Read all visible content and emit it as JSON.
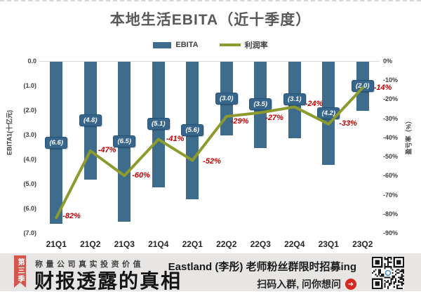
{
  "title": "本地生活EBITA（近十季度）",
  "chart_data": {
    "type": "bar+line",
    "categories": [
      "21Q1",
      "21Q2",
      "21Q3",
      "21Q4",
      "22Q1",
      "22Q2",
      "22Q3",
      "22Q4",
      "23Q1",
      "23Q2"
    ],
    "series": [
      {
        "name": "EBITA",
        "type": "bar",
        "axis": "left",
        "values": [
          -6.6,
          -4.8,
          -6.5,
          -5.1,
          -5.6,
          -3.0,
          -3.5,
          -3.1,
          -4.2,
          -2.0
        ],
        "labels": [
          "(6.6)",
          "(4.8)",
          "(6.5)",
          "(5.1)",
          "(5.6)",
          "(3.0)",
          "(3.5)",
          "(3.1)",
          "(4.2)",
          "(2.0)"
        ]
      },
      {
        "name": "利润率",
        "type": "line",
        "axis": "right",
        "values": [
          -82,
          -47,
          -60,
          -41,
          -52,
          -29,
          -27,
          -24,
          -33,
          -14
        ],
        "labels": [
          "-82%",
          "-47%",
          "-60%",
          "-41%",
          "-52%",
          "-29%",
          "-27%",
          "-24%",
          "-33%",
          "-14%"
        ]
      }
    ],
    "left_axis": {
      "title": "EBITA1(十亿元)",
      "min": -7,
      "max": 0,
      "ticks": [
        "0.0",
        "(1.0)",
        "(2.0)",
        "(3.0)",
        "(4.0)",
        "(5.0)",
        "(6.0)",
        "(7.0)"
      ]
    },
    "right_axis": {
      "title": "盈亏率（%）",
      "min": -90,
      "max": 0,
      "ticks": [
        "0%",
        "-10%",
        "-20%",
        "-30%",
        "-40%",
        "-50%",
        "-60%",
        "-70%",
        "-80%",
        "-90%"
      ]
    },
    "legend": [
      {
        "label": "EBITA",
        "swatch": "bar"
      },
      {
        "label": "利润率",
        "swatch": "line"
      }
    ],
    "grid": "zero-line-only",
    "legend_position": "top-center"
  },
  "colors": {
    "bar": "#3E6C8D",
    "badge_bg": "#38658A",
    "badge_border": "#24527A",
    "line": "#8C9A2E",
    "point_label": "#C00000",
    "footer_bg": "#E8E6E4",
    "ribbon": "#D6574D",
    "arrow": "#D6281E"
  },
  "footer": {
    "ribbon": "第三季",
    "tagline": "称量公司真实投资价值",
    "brand": "财报透露的真相",
    "promo_line1": "Eastland (李彤) 老师粉丝群限时招募ing",
    "promo_line2": "扫码入群, 问你想问"
  }
}
